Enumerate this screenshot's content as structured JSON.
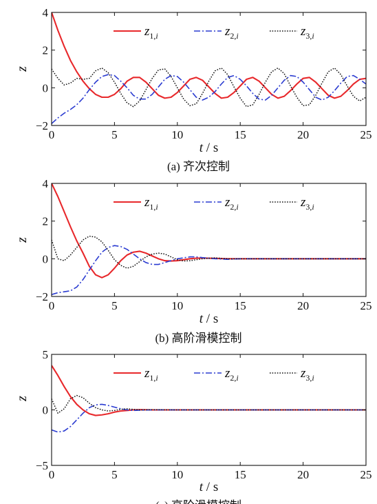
{
  "chart_data": [
    {
      "type": "line",
      "caption": "(a) 齐次控制",
      "xlabel": "t / s",
      "ylabel": "z",
      "xlim": [
        0,
        25
      ],
      "ylim": [
        -2,
        4
      ],
      "xticks": [
        "0",
        "5",
        "10",
        "15",
        "20",
        "25"
      ],
      "yticks": [
        "-2",
        "0",
        "2",
        "4"
      ],
      "grid": false,
      "legend": "top",
      "series": [
        {
          "name": "z1,i",
          "color": "#e8282b",
          "style": "solid",
          "x": [
            0,
            0.5,
            1,
            1.5,
            2,
            2.5,
            3,
            3.5,
            4,
            4.5,
            5,
            5.5,
            6,
            6.5,
            7,
            7.5,
            8,
            8.5,
            9,
            9.5,
            10,
            10.5,
            11,
            11.5,
            12,
            12.5,
            13,
            13.5,
            14,
            14.5,
            15,
            15.5,
            16,
            16.5,
            17,
            17.5,
            18,
            18.5,
            19,
            19.5,
            20,
            20.5,
            21,
            21.5,
            22,
            22.5,
            23,
            23.5,
            24,
            24.5,
            25
          ],
          "y": [
            4,
            3.05,
            2.2,
            1.45,
            0.85,
            0.35,
            -0.05,
            -0.35,
            -0.5,
            -0.5,
            -0.35,
            -0.05,
            0.35,
            0.55,
            0.55,
            0.3,
            -0.05,
            -0.4,
            -0.55,
            -0.5,
            -0.25,
            0.1,
            0.45,
            0.55,
            0.4,
            0.05,
            -0.3,
            -0.55,
            -0.5,
            -0.25,
            0.1,
            0.45,
            0.55,
            0.35,
            0,
            -0.35,
            -0.55,
            -0.45,
            -0.15,
            0.2,
            0.5,
            0.55,
            0.3,
            -0.05,
            -0.4,
            -0.55,
            -0.45,
            -0.15,
            0.2,
            0.45,
            0.5
          ]
        },
        {
          "name": "z2,i",
          "color": "#2a3bd1",
          "style": "dashdot",
          "x": [
            0,
            0.5,
            1,
            1.5,
            2,
            2.5,
            3,
            3.5,
            4,
            4.5,
            5,
            5.5,
            6,
            6.5,
            7,
            7.5,
            8,
            8.5,
            9,
            9.5,
            10,
            10.5,
            11,
            11.5,
            12,
            12.5,
            13,
            13.5,
            14,
            14.5,
            15,
            15.5,
            16,
            16.5,
            17,
            17.5,
            18,
            18.5,
            19,
            19.5,
            20,
            20.5,
            21,
            21.5,
            22,
            22.5,
            23,
            23.5,
            24,
            24.5,
            25
          ],
          "y": [
            -1.9,
            -1.6,
            -1.35,
            -1.15,
            -0.9,
            -0.55,
            -0.1,
            0.3,
            0.6,
            0.7,
            0.65,
            0.35,
            0,
            -0.4,
            -0.6,
            -0.6,
            -0.35,
            0.05,
            0.45,
            0.65,
            0.6,
            0.3,
            -0.1,
            -0.5,
            -0.65,
            -0.5,
            -0.2,
            0.2,
            0.55,
            0.65,
            0.45,
            0.1,
            -0.3,
            -0.6,
            -0.65,
            -0.4,
            0,
            0.4,
            0.65,
            0.6,
            0.3,
            -0.1,
            -0.5,
            -0.65,
            -0.5,
            -0.15,
            0.25,
            0.6,
            0.65,
            0.45,
            0.2
          ]
        },
        {
          "name": "z3,i",
          "color": "#111111",
          "style": "dotted",
          "x": [
            0,
            0.5,
            1,
            1.5,
            2,
            2.5,
            3,
            3.5,
            4,
            4.5,
            5,
            5.5,
            6,
            6.5,
            7,
            7.5,
            8,
            8.5,
            9,
            9.5,
            10,
            10.5,
            11,
            11.5,
            12,
            12.5,
            13,
            13.5,
            14,
            14.5,
            15,
            15.5,
            16,
            16.5,
            17,
            17.5,
            18,
            18.5,
            19,
            19.5,
            20,
            20.5,
            21,
            21.5,
            22,
            22.5,
            23,
            23.5,
            24,
            24.5,
            25
          ],
          "y": [
            1,
            0.5,
            0.15,
            0.25,
            0.5,
            0.45,
            0.5,
            0.9,
            1.05,
            0.8,
            0.3,
            -0.3,
            -0.8,
            -1,
            -0.7,
            -0.1,
            0.5,
            0.95,
            1,
            0.6,
            0,
            -0.6,
            -0.95,
            -0.85,
            -0.3,
            0.35,
            0.9,
            1.05,
            0.7,
            0.05,
            -0.55,
            -1,
            -0.9,
            -0.35,
            0.3,
            0.85,
            1.05,
            0.75,
            0.1,
            -0.5,
            -0.95,
            -0.9,
            -0.4,
            0.25,
            0.85,
            1.05,
            0.7,
            0.1,
            -0.45,
            -0.7,
            -0.5
          ]
        }
      ]
    },
    {
      "type": "line",
      "caption": "(b) 高阶滑模控制",
      "xlabel": "t / s",
      "ylabel": "z",
      "xlim": [
        0,
        25
      ],
      "ylim": [
        -2,
        4
      ],
      "xticks": [
        "0",
        "5",
        "10",
        "15",
        "20",
        "25"
      ],
      "yticks": [
        "-2",
        "0",
        "2",
        "4"
      ],
      "grid": false,
      "legend": "top",
      "series": [
        {
          "name": "z1,i",
          "color": "#e8282b",
          "style": "solid",
          "x": [
            0,
            0.5,
            1,
            1.5,
            2,
            2.5,
            3,
            3.5,
            4,
            4.5,
            5,
            5.5,
            6,
            6.5,
            7,
            7.5,
            8,
            8.5,
            9,
            9.5,
            10,
            10.5,
            11,
            11.5,
            12,
            13,
            14,
            15,
            16,
            18,
            20,
            22,
            25
          ],
          "y": [
            4,
            3.3,
            2.5,
            1.7,
            0.95,
            0.3,
            -0.4,
            -0.85,
            -1,
            -0.85,
            -0.5,
            -0.1,
            0.2,
            0.35,
            0.4,
            0.3,
            0.15,
            0,
            -0.1,
            -0.12,
            -0.1,
            -0.05,
            0,
            0.03,
            0.04,
            0.02,
            0,
            0,
            0,
            0,
            0,
            0,
            0
          ]
        },
        {
          "name": "z2,i",
          "color": "#2a3bd1",
          "style": "dashdot",
          "x": [
            0,
            0.5,
            1,
            1.5,
            2,
            2.5,
            3,
            3.5,
            4,
            4.5,
            5,
            5.5,
            6,
            6.5,
            7,
            7.5,
            8,
            8.5,
            9,
            9.5,
            10,
            10.5,
            11,
            11.5,
            12,
            13,
            14,
            15,
            16,
            18,
            20,
            22,
            25
          ],
          "y": [
            -1.9,
            -1.8,
            -1.75,
            -1.7,
            -1.5,
            -1.1,
            -0.6,
            -0.1,
            0.35,
            0.6,
            0.7,
            0.65,
            0.5,
            0.25,
            0,
            -0.2,
            -0.3,
            -0.3,
            -0.2,
            -0.1,
            0,
            0.05,
            0.1,
            0.1,
            0.06,
            0,
            -0.03,
            0,
            0,
            0,
            0,
            0,
            0
          ]
        },
        {
          "name": "z3,i",
          "color": "#111111",
          "style": "dotted",
          "x": [
            0,
            0.5,
            1,
            1.5,
            2,
            2.5,
            3,
            3.5,
            4,
            4.5,
            5,
            5.5,
            6,
            6.5,
            7,
            7.5,
            8,
            8.5,
            9,
            9.5,
            10,
            10.5,
            11,
            11.5,
            12,
            13,
            14,
            15,
            16,
            18,
            20,
            22,
            25
          ],
          "y": [
            1,
            0,
            -0.1,
            0.2,
            0.6,
            1,
            1.2,
            1.15,
            0.9,
            0.45,
            -0.05,
            -0.35,
            -0.5,
            -0.4,
            -0.15,
            0.1,
            0.25,
            0.3,
            0.25,
            0.1,
            -0.05,
            -0.12,
            -0.1,
            -0.05,
            0,
            0.05,
            0,
            0,
            0,
            0,
            0,
            0,
            0
          ]
        }
      ]
    },
    {
      "type": "line",
      "caption": "(c) 高阶滑模控制",
      "xlabel": "t / s",
      "ylabel": "z",
      "xlim": [
        0,
        25
      ],
      "ylim": [
        -5,
        5
      ],
      "xticks": [
        "0",
        "5",
        "10",
        "15",
        "20",
        "25"
      ],
      "yticks": [
        "-5",
        "0",
        "5"
      ],
      "grid": false,
      "legend": "top",
      "series": [
        {
          "name": "z1,i",
          "color": "#e8282b",
          "style": "solid",
          "x": [
            0,
            0.5,
            1,
            1.5,
            2,
            2.5,
            3,
            3.5,
            4,
            4.5,
            5,
            5.5,
            6,
            6.5,
            7,
            8,
            10,
            15,
            25
          ],
          "y": [
            4,
            3.1,
            2.1,
            1.2,
            0.5,
            0,
            -0.35,
            -0.5,
            -0.45,
            -0.35,
            -0.2,
            -0.1,
            -0.05,
            0,
            0.02,
            0,
            0,
            0,
            0
          ]
        },
        {
          "name": "z2,i",
          "color": "#2a3bd1",
          "style": "dashdot",
          "x": [
            0,
            0.5,
            1,
            1.5,
            2,
            2.5,
            3,
            3.5,
            4,
            4.5,
            5,
            5.5,
            6,
            6.5,
            7,
            8,
            10,
            15,
            25
          ],
          "y": [
            -1.8,
            -2,
            -1.9,
            -1.5,
            -0.9,
            -0.3,
            0.2,
            0.45,
            0.5,
            0.4,
            0.25,
            0.1,
            0,
            -0.05,
            -0.03,
            0,
            0,
            0,
            0
          ]
        },
        {
          "name": "z3,i",
          "color": "#111111",
          "style": "dotted",
          "x": [
            0,
            0.5,
            1,
            1.5,
            2,
            2.5,
            3,
            3.5,
            4,
            4.5,
            5,
            5.5,
            6,
            6.5,
            7,
            8,
            10,
            15,
            25
          ],
          "y": [
            1,
            -0.3,
            0.1,
            1,
            1.3,
            1.1,
            0.6,
            0.2,
            0,
            -0.1,
            -0.05,
            0.05,
            0.1,
            0.05,
            0,
            0.02,
            0,
            0,
            0
          ]
        }
      ]
    }
  ]
}
